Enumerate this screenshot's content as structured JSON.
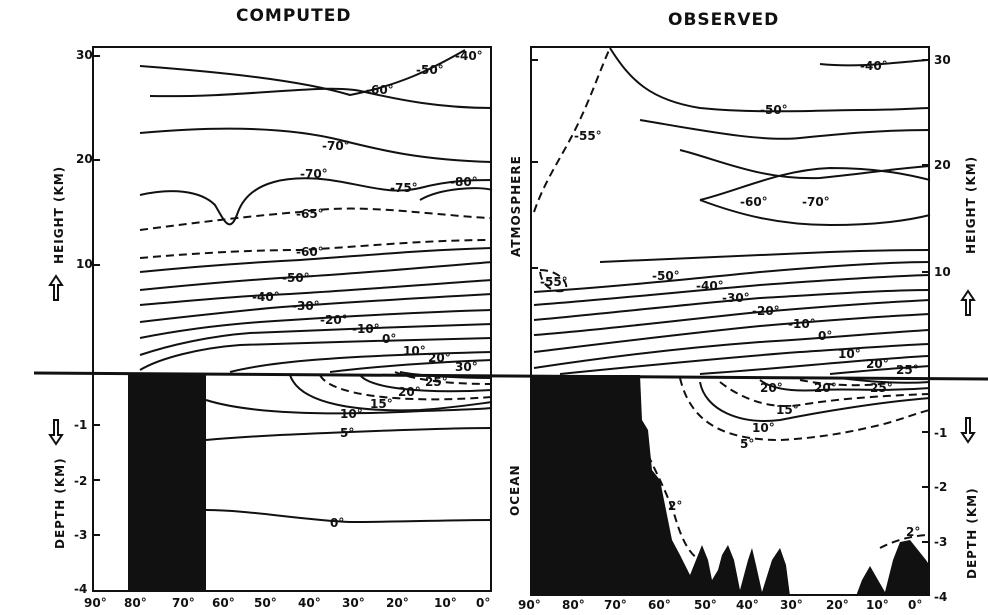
{
  "titles": {
    "computed": "COMPUTED",
    "observed": "OBSERVED"
  },
  "left_axis": {
    "height_label": "HEIGHT (KM)",
    "depth_label": "DEPTH (KM)",
    "height_ticks": [
      "30",
      "20",
      "10"
    ],
    "depth_ticks": [
      "-1",
      "-2",
      "-3",
      "-4"
    ]
  },
  "right_axis": {
    "height_label": "HEIGHT (KM)",
    "depth_label": "DEPTH (KM)",
    "height_ticks": [
      "30",
      "20",
      "10"
    ],
    "depth_ticks": [
      "-1",
      "-2",
      "-3",
      "-4"
    ]
  },
  "region_labels": {
    "atmosphere": "ATMOSPHERE",
    "ocean": "OCEAN"
  },
  "x_ticks_computed": [
    "90°",
    "80°",
    "70°",
    "60°",
    "50°",
    "40°",
    "30°",
    "20°",
    "10°",
    "0°"
  ],
  "x_ticks_observed": [
    "90°",
    "80°",
    "70°",
    "60°",
    "50°",
    "40°",
    "30°",
    "20°",
    "10°",
    "0°"
  ],
  "contour_labels_computed": [
    "-40°",
    "-50°",
    "-60°",
    "-70°",
    "-70°",
    "-75°",
    "-80°",
    "-65°",
    "-60°",
    "-50°",
    "-40°",
    "-30°",
    "-20°",
    "-10°",
    "0°",
    "10°",
    "20°",
    "30°",
    "25°",
    "20°",
    "15°",
    "10°",
    "5°",
    "0°"
  ],
  "contour_labels_observed": [
    "-40°",
    "-50°",
    "-55°",
    "-60°",
    "-70°",
    "-55°",
    "-50°",
    "-40°",
    "-30°",
    "-20°",
    "-10°",
    "0°",
    "10°",
    "20°",
    "25°",
    "20°",
    "20°",
    "25°",
    "15°",
    "10°",
    "5°",
    "2°",
    "2°"
  ]
}
